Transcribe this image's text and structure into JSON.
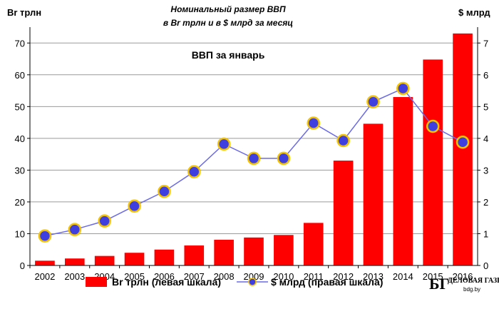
{
  "chart_data": {
    "type": "bar+line",
    "title": "Номинальный  размер ВВП",
    "subtitle": "в Вr трлн и в $ млрд за месяц",
    "inner_title": "ВВП за январь",
    "left_axis_label": "Вr трлн",
    "right_axis_label": "$ млрд",
    "categories": [
      "2002",
      "2003",
      "2004",
      "2005",
      "2006",
      "2007",
      "2008",
      "2009",
      "2010",
      "2011",
      "2012",
      "2013",
      "2014",
      "2015",
      "2016"
    ],
    "left_ylim": [
      0,
      75
    ],
    "left_ticks": [
      0,
      10,
      20,
      30,
      40,
      50,
      60,
      70
    ],
    "right_ylim": [
      0,
      7.5
    ],
    "right_ticks": [
      0,
      1,
      2,
      3,
      4,
      5,
      6,
      7
    ],
    "grid": true,
    "series": [
      {
        "name": "Вr трлн (левая шкала)",
        "type": "bar",
        "axis": "left",
        "color": "#ff0000",
        "values": [
          1.5,
          2.2,
          3.0,
          4.0,
          5.0,
          6.3,
          8.1,
          8.8,
          9.6,
          13.4,
          33.0,
          44.6,
          53.0,
          64.8,
          73.0
        ]
      },
      {
        "name": "$ млрд (правая шкала)",
        "type": "line",
        "axis": "right",
        "color": "#6a6ae8",
        "marker_fill": "#3f3fe0",
        "marker_edge": "#f5c400",
        "values": [
          0.93,
          1.13,
          1.4,
          1.87,
          2.33,
          2.95,
          3.82,
          3.37,
          3.37,
          4.48,
          3.93,
          5.15,
          5.57,
          4.38,
          3.88
        ]
      }
    ],
    "legend_position": "bottom"
  },
  "logo": {
    "mark": "БГ",
    "name": "ДЕЛОВАЯ ГАЗЕТА",
    "site": "bdg.by"
  }
}
